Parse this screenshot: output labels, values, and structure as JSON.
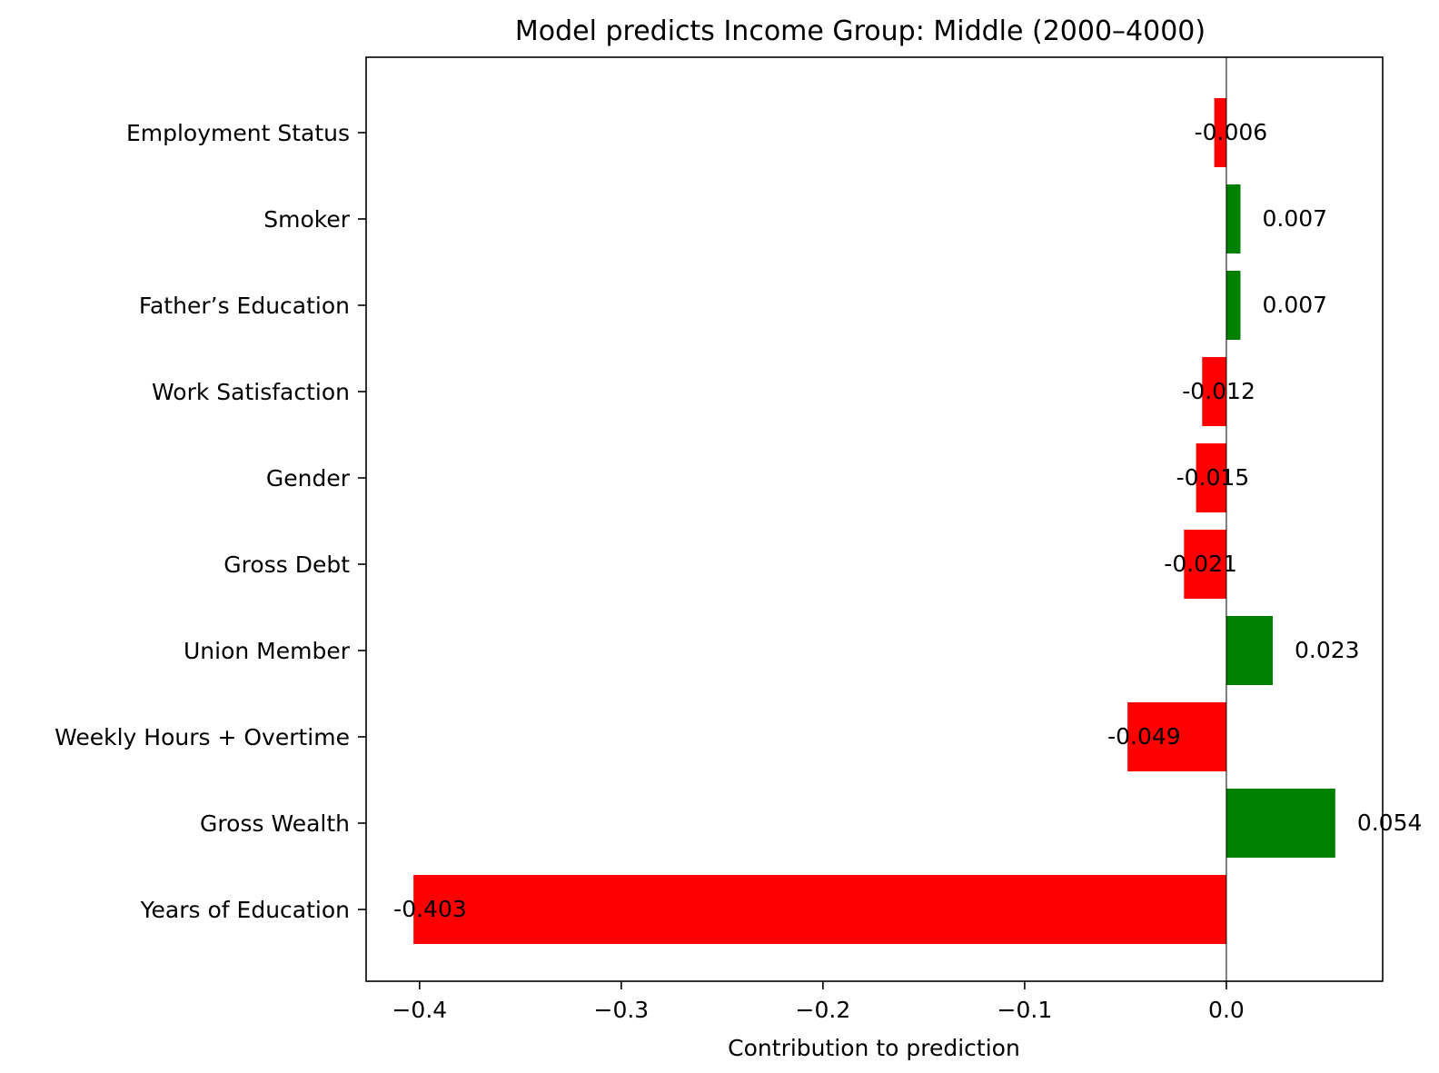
{
  "chart_data": {
    "type": "bar",
    "orientation": "horizontal",
    "title": "Model predicts Income Group: Middle (2000–4000)",
    "xlabel": "Contribution to prediction",
    "ylabel": "",
    "xlim": [
      -0.4265,
      0.0775
    ],
    "xticks": [
      -0.4,
      -0.3,
      -0.2,
      -0.1,
      0.0
    ],
    "xtick_labels": [
      "−0.4",
      "−0.3",
      "−0.2",
      "−0.1",
      "0.0"
    ],
    "grid": false,
    "categories": [
      "Employment Status",
      "Smoker",
      "Father’s Education",
      "Work Satisfaction",
      "Gender",
      "Gross Debt",
      "Union Member",
      "Weekly Hours + Overtime",
      "Gross Wealth",
      "Years of Education"
    ],
    "values": [
      -0.006,
      0.007,
      0.007,
      -0.012,
      -0.015,
      -0.021,
      0.023,
      -0.049,
      0.054,
      -0.403
    ],
    "value_labels": [
      "-0.006",
      "0.007",
      "0.007",
      "-0.012",
      "-0.015",
      "-0.021",
      "0.023",
      "-0.049",
      "0.054",
      "-0.403"
    ],
    "colors": {
      "positive": "#008000",
      "negative": "#ff0000",
      "zero_line": "#000000"
    }
  }
}
